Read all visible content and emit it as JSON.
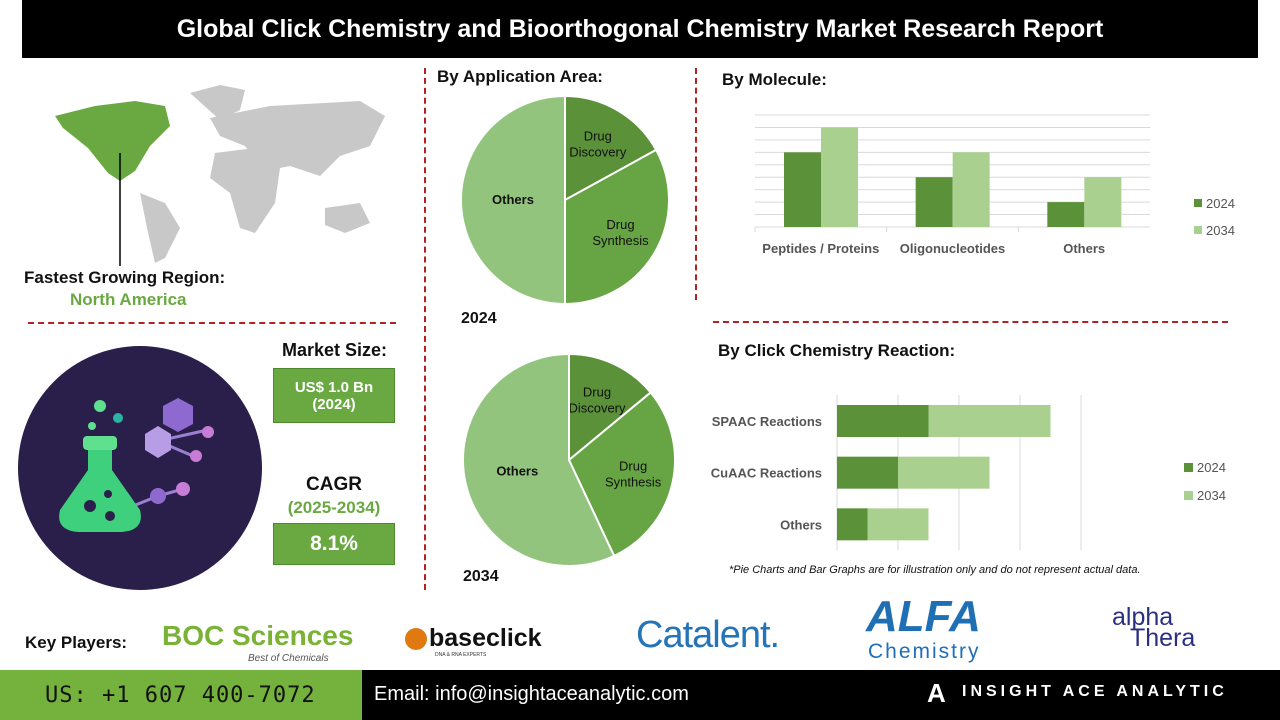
{
  "title": "Global Click Chemistry and Bioorthogonal Chemistry Market Research Report",
  "region": {
    "label": "Fastest Growing Region:",
    "value": "North America"
  },
  "market_size": {
    "label": "Market Size:",
    "value": "US$ 1.0 Bn",
    "year": "(2024)"
  },
  "cagr": {
    "label": "CAGR",
    "period": "(2025-2034)",
    "value": "8.1%"
  },
  "colors": {
    "dark_green": "#5a9139",
    "mid_green": "#67a544",
    "light_green": "#93c47d",
    "light_bar": "#a9d08e",
    "red_dash": "#b22222",
    "navy": "#2a1f4a"
  },
  "chart_data": [
    {
      "type": "pie",
      "title": "By Application Area:",
      "year_label": "2024",
      "categories": [
        "Drug Discovery",
        "Drug Synthesis",
        "Others"
      ],
      "values": [
        17,
        33,
        50
      ]
    },
    {
      "type": "pie",
      "year_label": "2034",
      "categories": [
        "Drug Discovery",
        "Drug Synthesis",
        "Others"
      ],
      "values": [
        14,
        29,
        57
      ]
    },
    {
      "type": "bar",
      "title": "By Molecule:",
      "categories": [
        "Peptides / Proteins",
        "Oligonucleotides",
        "Others"
      ],
      "series": [
        {
          "name": "2024",
          "values": [
            6,
            4,
            2
          ]
        },
        {
          "name": "2034",
          "values": [
            8,
            6,
            4
          ]
        }
      ],
      "ylim": [
        0,
        9
      ],
      "grid": true,
      "legend": "right"
    },
    {
      "type": "bar",
      "orientation": "horizontal",
      "stacked": true,
      "title": "By Click Chemistry Reaction:",
      "categories": [
        "SPAAC Reactions",
        "CuAAC Reactions",
        "Others"
      ],
      "series": [
        {
          "name": "2024",
          "values": [
            1.5,
            1,
            0.5
          ]
        },
        {
          "name": "2034",
          "values": [
            2,
            1.5,
            1
          ]
        }
      ],
      "xlim": [
        0,
        4
      ],
      "grid": true,
      "legend": "right"
    }
  ],
  "note": "*Pie Charts and Bar Graphs are for illustration only and do not represent actual data.",
  "key_players": {
    "label": "Key Players:",
    "logos": [
      "BOC Sciences",
      "Best of Chemicals",
      "baseclick",
      "DNA & RNA EXPERTS",
      "Catalent.",
      "ALFA",
      "Chemistry",
      "alpha",
      "Thera"
    ]
  },
  "footer": {
    "phone": "US: +1 607 400-7072",
    "email": "Email: info@insightaceanalytic.com",
    "brand": "INSIGHT ACE ANALYTIC"
  }
}
